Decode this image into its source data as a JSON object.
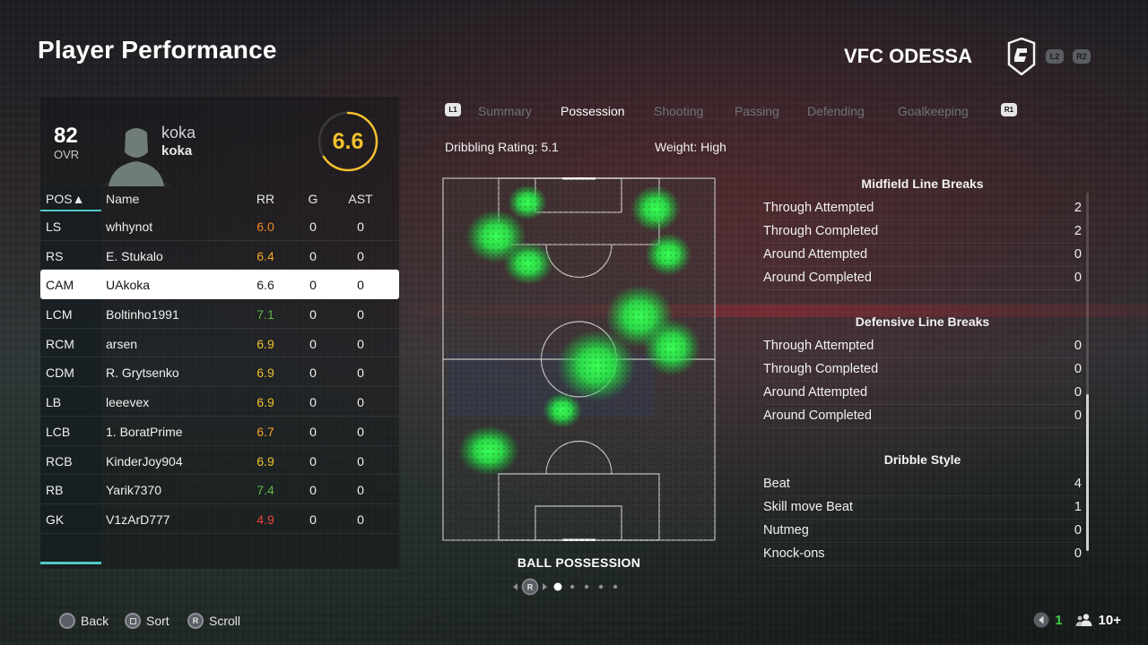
{
  "page_title": "Player Performance",
  "club": {
    "name": "VFC ODESSA",
    "buttons": [
      "L2",
      "R2"
    ]
  },
  "player": {
    "ovr": "82",
    "ovr_label": "OVR",
    "name_line1": "koka",
    "name_line2": "koka",
    "match_rating": "6.6",
    "rating_color": "#f2c12e"
  },
  "table": {
    "headers": {
      "pos": "POS▲",
      "name": "Name",
      "rr": "RR",
      "g": "G",
      "ast": "AST"
    },
    "rows": [
      {
        "pos": "LS",
        "name": "whhynot",
        "rr": "6.0",
        "g": "0",
        "ast": "0",
        "rr_color": "#f08a24"
      },
      {
        "pos": "RS",
        "name": "E. Stukalo",
        "rr": "6.4",
        "g": "0",
        "ast": "0",
        "rr_color": "#f5a623"
      },
      {
        "pos": "CAM",
        "name": "UAkoka",
        "rr": "6.6",
        "g": "0",
        "ast": "0",
        "rr_color": "#222222"
      },
      {
        "pos": "LCM",
        "name": "Boltinho1991",
        "rr": "7.1",
        "g": "0",
        "ast": "0",
        "rr_color": "#5fb848"
      },
      {
        "pos": "RCM",
        "name": "arsen",
        "rr": "6.9",
        "g": "0",
        "ast": "0",
        "rr_color": "#f2c12e"
      },
      {
        "pos": "CDM",
        "name": "R. Grytsenko",
        "rr": "6.9",
        "g": "0",
        "ast": "0",
        "rr_color": "#f2c12e"
      },
      {
        "pos": "LB",
        "name": "leeevex",
        "rr": "6.9",
        "g": "0",
        "ast": "0",
        "rr_color": "#f2c12e"
      },
      {
        "pos": "LCB",
        "name": "1. BoratPrime",
        "rr": "6.7",
        "g": "0",
        "ast": "0",
        "rr_color": "#f5a623"
      },
      {
        "pos": "RCB",
        "name": "KinderJoy904",
        "rr": "6.9",
        "g": "0",
        "ast": "0",
        "rr_color": "#f2c12e"
      },
      {
        "pos": "RB",
        "name": "Yarik7370",
        "rr": "7.4",
        "g": "0",
        "ast": "0",
        "rr_color": "#5fb848"
      },
      {
        "pos": "GK",
        "name": "V1zArD777",
        "rr": "4.9",
        "g": "0",
        "ast": "0",
        "rr_color": "#e8443a"
      }
    ],
    "selected_index": 2
  },
  "tabs": {
    "left_button": "L1",
    "right_button": "R1",
    "items": [
      {
        "label": "Summary",
        "active": false
      },
      {
        "label": "Possession",
        "active": true
      },
      {
        "label": "Shooting",
        "active": false
      },
      {
        "label": "Passing",
        "active": false
      },
      {
        "label": "Defending",
        "active": false
      },
      {
        "label": "Goalkeeping",
        "active": false
      }
    ]
  },
  "sub_info": {
    "dribbling_rating": "Dribbling Rating: 5.1",
    "weight": "Weight: High"
  },
  "heatmap": {
    "caption": "BALL POSSESSION",
    "color": "#2ef04a",
    "page_index": 0,
    "page_count": 5,
    "pager_button": "R"
  },
  "stats": {
    "sections": [
      {
        "title": "Midfield Line Breaks",
        "rows": [
          {
            "label": "Through Attempted",
            "value": "2"
          },
          {
            "label": "Through Completed",
            "value": "2"
          },
          {
            "label": "Around Attempted",
            "value": "0"
          },
          {
            "label": "Around Completed",
            "value": "0"
          }
        ]
      },
      {
        "title": "Defensive Line Breaks",
        "rows": [
          {
            "label": "Through Attempted",
            "value": "0"
          },
          {
            "label": "Through Completed",
            "value": "0"
          },
          {
            "label": "Around Attempted",
            "value": "0"
          },
          {
            "label": "Around Completed",
            "value": "0"
          }
        ]
      },
      {
        "title": "Dribble Style",
        "rows": [
          {
            "label": "Beat",
            "value": "4"
          },
          {
            "label": "Skill move Beat",
            "value": "1"
          },
          {
            "label": "Nutmeg",
            "value": "0"
          },
          {
            "label": "Knock-ons",
            "value": "0"
          }
        ]
      }
    ]
  },
  "footer": {
    "back": "Back",
    "sort": "Sort",
    "scroll": "Scroll",
    "scroll_button": "R",
    "count": "1",
    "players": "10+"
  }
}
